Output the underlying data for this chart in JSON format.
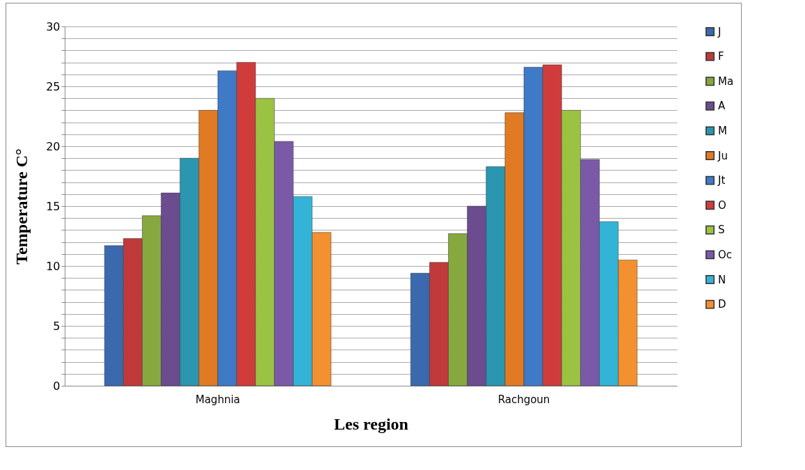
{
  "chart_data": {
    "type": "bar",
    "xlabel": "Les region",
    "ylabel": "Temperature  C°",
    "categories": [
      "Maghnia",
      "Rachgoun"
    ],
    "series": [
      {
        "name": "J",
        "color": "#3a6aad",
        "values": [
          11.7,
          9.4
        ]
      },
      {
        "name": "F",
        "color": "#c0393b",
        "values": [
          12.3,
          10.3
        ]
      },
      {
        "name": "Ma",
        "color": "#86a83e",
        "values": [
          14.2,
          12.7
        ]
      },
      {
        "name": "A",
        "color": "#6a4c8f",
        "values": [
          16.1,
          15.0
        ]
      },
      {
        "name": "M",
        "color": "#2a96b0",
        "values": [
          19.0,
          18.3
        ]
      },
      {
        "name": "Ju",
        "color": "#e07b24",
        "values": [
          23.0,
          22.8
        ]
      },
      {
        "name": "Jt",
        "color": "#3f7ac6",
        "values": [
          26.3,
          26.6
        ]
      },
      {
        "name": "O",
        "color": "#d03c3c",
        "values": [
          27.0,
          26.8
        ]
      },
      {
        "name": "S",
        "color": "#9bc243",
        "values": [
          24.0,
          23.0
        ]
      },
      {
        "name": "Oc",
        "color": "#7a5aa8",
        "values": [
          20.4,
          18.9
        ]
      },
      {
        "name": "N",
        "color": "#33b3d6",
        "values": [
          15.8,
          13.7
        ]
      },
      {
        "name": "D",
        "color": "#f39030",
        "values": [
          12.8,
          10.5
        ]
      }
    ],
    "ylim": [
      0,
      30
    ],
    "yticks": [
      0,
      {
        "value": 1,
        "label": null
      },
      {
        "value": 2,
        "label": null
      },
      {
        "value": 3,
        "label": null
      },
      {
        "value": 4,
        "label": null
      },
      5,
      {
        "value": 6,
        "label": null
      },
      {
        "value": 7,
        "label": null
      },
      {
        "value": 8,
        "label": null
      },
      {
        "value": 9,
        "label": null
      },
      10,
      {
        "value": 11,
        "label": null
      },
      {
        "value": 12,
        "label": null
      },
      {
        "value": 13,
        "label": null
      },
      {
        "value": 14,
        "label": null
      },
      15,
      {
        "value": 16,
        "label": null
      },
      {
        "value": 17,
        "label": null
      },
      {
        "value": 18,
        "label": null
      },
      {
        "value": 19,
        "label": null
      },
      20,
      {
        "value": 21,
        "label": null
      },
      {
        "value": 22,
        "label": null
      },
      {
        "value": 23,
        "label": null
      },
      {
        "value": 24,
        "label": null
      },
      25,
      {
        "value": 26,
        "label": null
      },
      {
        "value": 27,
        "label": null
      },
      {
        "value": 28,
        "label": null
      },
      {
        "value": 29,
        "label": null
      },
      30
    ],
    "grid": "y",
    "legend": "right"
  }
}
